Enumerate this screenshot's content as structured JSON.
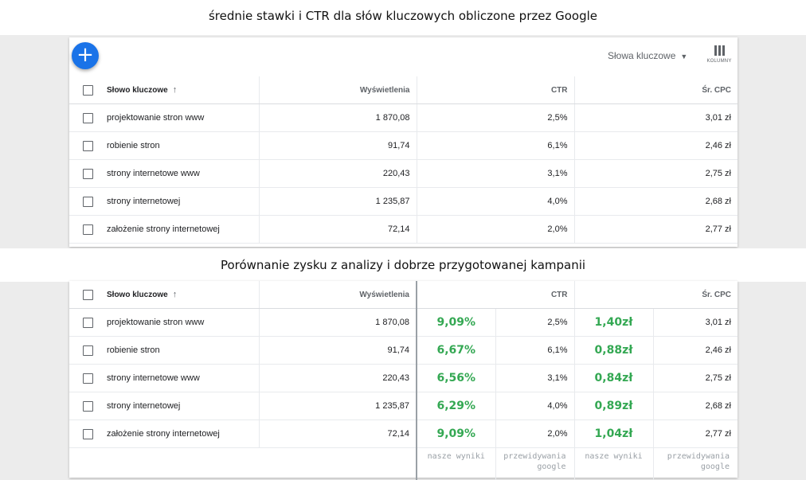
{
  "banner_top": "średnie stawki i CTR dla słów kluczowych obliczone przez Google",
  "banner_mid": "Porównanie zysku z analizy i dobrze przygotowanej kampanii",
  "toolbar": {
    "add_icon": "+",
    "dropdown_label": "Słowa kluczowe",
    "caret": "▼",
    "columns_label": "KOLUMNY"
  },
  "table": {
    "headers": {
      "keyword": "Słowo kluczowe",
      "sort": "↑",
      "impressions": "Wyświetlenia",
      "ctr": "CTR",
      "cpc": "Śr. CPC"
    },
    "rows": [
      {
        "keyword": "projektowanie stron www",
        "impressions": "1 870,08",
        "ctr": "2,5%",
        "cpc": "3,01 zł",
        "our_ctr": "9,09%",
        "our_cpc": "1,40zł"
      },
      {
        "keyword": "robienie stron",
        "impressions": "91,74",
        "ctr": "6,1%",
        "cpc": "2,46 zł",
        "our_ctr": "6,67%",
        "our_cpc": "0,88zł"
      },
      {
        "keyword": "strony internetowe www",
        "impressions": "220,43",
        "ctr": "3,1%",
        "cpc": "2,75 zł",
        "our_ctr": "6,56%",
        "our_cpc": "0,84zł"
      },
      {
        "keyword": "strony internetowej",
        "impressions": "1 235,87",
        "ctr": "4,0%",
        "cpc": "2,68 zł",
        "our_ctr": "6,29%",
        "our_cpc": "0,89zł"
      },
      {
        "keyword": "założenie strony internetowej",
        "impressions": "72,14",
        "ctr": "2,0%",
        "cpc": "2,77 zł",
        "our_ctr": "9,09%",
        "our_cpc": "1,04zł"
      }
    ]
  },
  "footer_labels": {
    "our_results": "nasze wyniki",
    "google_predictions_line1": "przewidywania",
    "google_predictions_line2": "google"
  },
  "colors": {
    "accent": "#1a73e8",
    "positive": "#34a853"
  }
}
